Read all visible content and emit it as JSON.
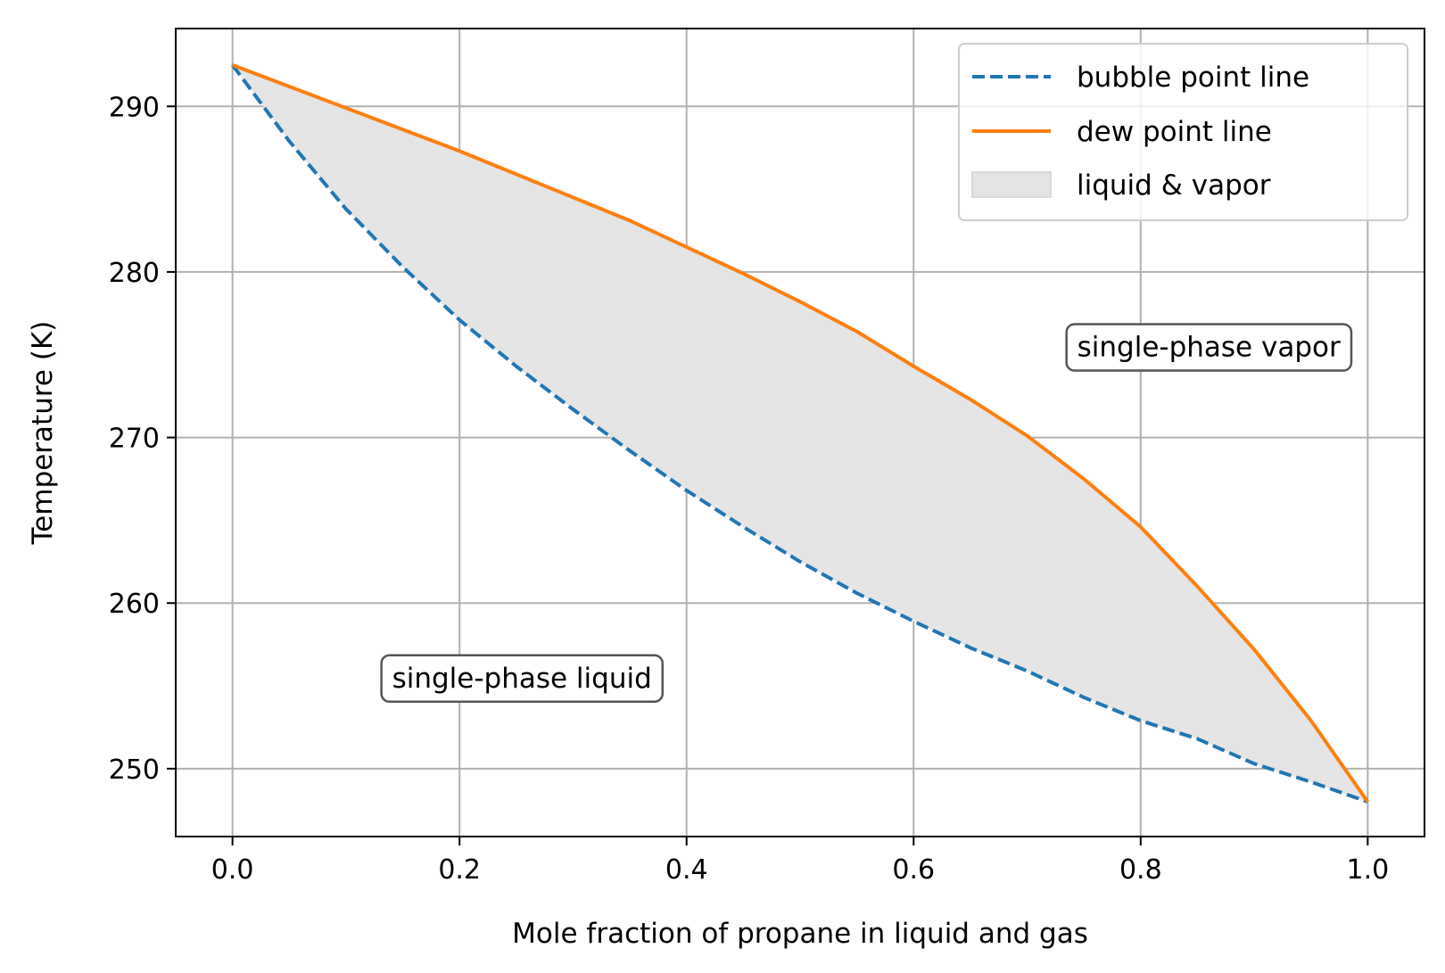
{
  "chart_data": {
    "type": "line",
    "title": "",
    "xlabel": "Mole fraction of propane in liquid and gas",
    "ylabel": "Temperature (K)",
    "xlim": [
      -0.05,
      1.05
    ],
    "ylim": [
      245.9,
      294.7
    ],
    "grid": true,
    "legend_position": "top-right",
    "x_ticks": [
      0.0,
      0.2,
      0.4,
      0.6,
      0.8,
      1.0
    ],
    "x_tick_labels": [
      "0.0",
      "0.2",
      "0.4",
      "0.6",
      "0.8",
      "1.0"
    ],
    "y_ticks": [
      250,
      260,
      270,
      280,
      290
    ],
    "y_tick_labels": [
      "250",
      "260",
      "270",
      "280",
      "290"
    ],
    "series": [
      {
        "name": "bubble point line",
        "color": "#1f77b4",
        "style": "dashed",
        "x": [
          0.0,
          0.05,
          0.1,
          0.15,
          0.2,
          0.25,
          0.3,
          0.35,
          0.4,
          0.45,
          0.5,
          0.55,
          0.6,
          0.65,
          0.7,
          0.75,
          0.8,
          0.85,
          0.9,
          0.95,
          1.0
        ],
        "y": [
          292.5,
          287.9,
          283.8,
          280.3,
          277.1,
          274.3,
          271.7,
          269.2,
          266.8,
          264.6,
          262.5,
          260.6,
          258.9,
          257.3,
          255.9,
          254.3,
          252.9,
          251.8,
          250.3,
          249.2,
          248.0
        ]
      },
      {
        "name": "dew point line",
        "color": "#ff7f0e",
        "style": "solid",
        "x": [
          0.0,
          0.05,
          0.1,
          0.15,
          0.2,
          0.25,
          0.3,
          0.35,
          0.4,
          0.45,
          0.5,
          0.55,
          0.6,
          0.65,
          0.7,
          0.75,
          0.8,
          0.85,
          0.9,
          0.95,
          1.0
        ],
        "y": [
          292.5,
          291.2,
          289.9,
          288.6,
          287.3,
          285.9,
          284.5,
          283.1,
          281.5,
          279.9,
          278.2,
          276.4,
          274.3,
          272.3,
          270.1,
          267.5,
          264.6,
          261.0,
          257.2,
          252.9,
          248.0
        ]
      }
    ],
    "fill_between": {
      "name": "liquid & vapor",
      "color": "#e5e5e5",
      "between": [
        "bubble point line",
        "dew point line"
      ]
    },
    "annotations": [
      {
        "text": "single-phase vapor",
        "x": 0.86,
        "y": 275.5
      },
      {
        "text": "single-phase liquid",
        "x": 0.255,
        "y": 255.5
      }
    ]
  }
}
